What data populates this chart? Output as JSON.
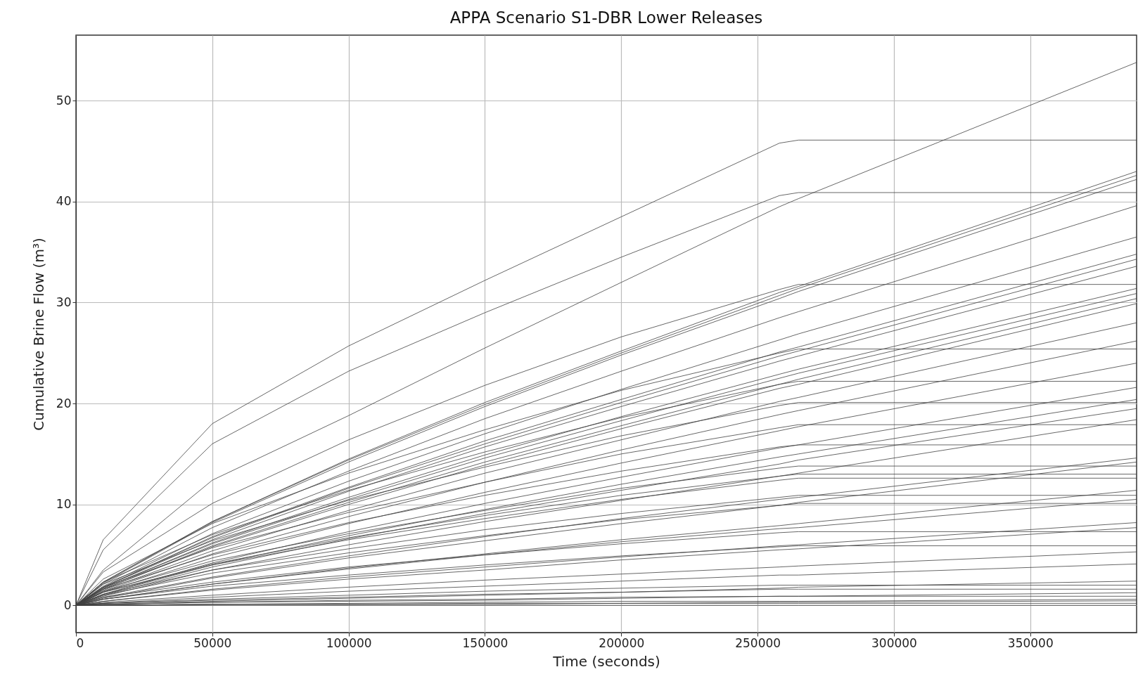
{
  "chart_data": {
    "type": "line",
    "title": "APPA Scenario S1-DBR Lower Releases",
    "xlabel": "Time (seconds)",
    "ylabel": "Cumulative Brine Flow (m³)",
    "x": [
      0,
      10000,
      50000,
      100000,
      150000,
      200000,
      258000,
      265000,
      389000
    ],
    "xlim": [
      0,
      389000
    ],
    "xticks": [
      0,
      50000,
      100000,
      150000,
      200000,
      250000,
      300000,
      350000
    ],
    "ylim": [
      -2.7,
      56.5
    ],
    "yticks": [
      0,
      10,
      20,
      30,
      40,
      50
    ],
    "grid": true,
    "line_style": "solid",
    "series": [
      {
        "color": "#404040",
        "values": [
          0,
          3.5,
          12.4,
          18.8,
          25.5,
          32.0,
          39.5,
          40.3,
          53.8
        ]
      },
      {
        "color": "#404040",
        "values": [
          0,
          6.5,
          18.0,
          25.7,
          32.2,
          38.5,
          45.8,
          46.1,
          46.1
        ]
      },
      {
        "color": "#404040",
        "values": [
          0,
          5.5,
          16.0,
          23.2,
          29.0,
          34.5,
          40.6,
          40.9,
          40.9
        ]
      },
      {
        "color": "#404040",
        "values": [
          0,
          3.3,
          10.1,
          16.4,
          21.8,
          26.6,
          31.3,
          31.8,
          31.8
        ]
      },
      {
        "color": "#404040",
        "values": [
          0,
          2.3,
          8.3,
          14.5,
          20.1,
          25.2,
          31.0,
          31.6,
          43.0
        ]
      },
      {
        "color": "#404040",
        "values": [
          0,
          2.3,
          8.3,
          14.4,
          19.9,
          25.0,
          30.7,
          31.4,
          42.6
        ]
      },
      {
        "color": "#404040",
        "values": [
          0,
          2.2,
          8.2,
          14.2,
          19.7,
          24.8,
          30.4,
          31.1,
          42.2
        ]
      },
      {
        "color": "#404040",
        "values": [
          0,
          2.1,
          7.7,
          13.3,
          18.5,
          23.2,
          28.5,
          29.1,
          39.6
        ]
      },
      {
        "color": "#404040",
        "values": [
          0,
          1.9,
          7.1,
          12.3,
          17.0,
          21.4,
          26.3,
          26.9,
          36.5
        ]
      },
      {
        "color": "#404040",
        "values": [
          0,
          1.8,
          6.8,
          11.7,
          16.3,
          20.4,
          25.1,
          25.6,
          34.8
        ]
      },
      {
        "color": "#404040",
        "values": [
          0,
          1.8,
          6.7,
          11.6,
          16.0,
          20.1,
          24.7,
          25.2,
          34.3
        ]
      },
      {
        "color": "#404040",
        "values": [
          0,
          1.8,
          6.5,
          11.3,
          15.7,
          19.7,
          24.2,
          24.7,
          33.6
        ]
      },
      {
        "color": "#404040",
        "values": [
          0,
          1.7,
          6.2,
          10.7,
          14.9,
          18.7,
          22.9,
          23.4,
          31.4
        ]
      },
      {
        "color": "#404040",
        "values": [
          0,
          1.7,
          6.1,
          10.5,
          14.6,
          18.3,
          22.5,
          23.0,
          30.9
        ]
      },
      {
        "color": "#404040",
        "values": [
          0,
          1.6,
          5.9,
          10.2,
          14.2,
          17.8,
          21.9,
          22.4,
          30.4
        ]
      },
      {
        "color": "#404040",
        "values": [
          0,
          1.6,
          5.8,
          10.0,
          13.9,
          17.5,
          21.5,
          21.9,
          29.9
        ]
      },
      {
        "color": "#404040",
        "values": [
          0,
          1.5,
          5.4,
          9.4,
          13.1,
          16.4,
          20.2,
          20.6,
          28.0
        ]
      },
      {
        "color": "#404040",
        "values": [
          0,
          1.4,
          5.1,
          8.8,
          12.2,
          15.4,
          18.9,
          19.3,
          26.2
        ]
      },
      {
        "color": "#404040",
        "values": [
          0,
          1.3,
          4.7,
          8.1,
          11.2,
          14.1,
          17.3,
          17.7,
          24.0
        ]
      },
      {
        "color": "#404040",
        "values": [
          0,
          1.1,
          4.2,
          7.3,
          10.1,
          12.7,
          15.6,
          15.9,
          21.6
        ]
      },
      {
        "color": "#404040",
        "values": [
          0,
          1.1,
          4.0,
          6.9,
          9.5,
          12.0,
          14.7,
          15.0,
          20.4
        ]
      },
      {
        "color": "#404040",
        "values": [
          0,
          1.0,
          3.8,
          6.6,
          9.1,
          11.4,
          14.0,
          14.4,
          19.5
        ]
      },
      {
        "color": "#404040",
        "values": [
          0,
          0.9,
          3.5,
          6.0,
          8.3,
          10.4,
          12.8,
          13.1,
          18.4
        ]
      },
      {
        "color": "#404040",
        "values": [
          0,
          0.8,
          2.8,
          4.9,
          6.8,
          8.6,
          10.5,
          10.7,
          14.6
        ]
      },
      {
        "color": "#404040",
        "values": [
          0,
          0.7,
          2.7,
          4.7,
          6.4,
          8.1,
          9.9,
          10.2,
          14.2
        ]
      },
      {
        "color": "#404040",
        "values": [
          0,
          0.6,
          2.1,
          3.7,
          5.1,
          6.5,
          7.9,
          8.1,
          11.4
        ]
      },
      {
        "color": "#404040",
        "values": [
          0,
          0.6,
          2.1,
          3.6,
          5.0,
          6.3,
          7.6,
          7.7,
          10.5
        ]
      },
      {
        "color": "#404040",
        "values": [
          0,
          0.4,
          1.6,
          2.8,
          3.8,
          4.8,
          5.9,
          6.0,
          8.2
        ]
      },
      {
        "color": "#404040",
        "values": [
          0,
          0.4,
          1.5,
          2.6,
          3.5,
          4.5,
          5.5,
          5.6,
          7.7
        ]
      },
      {
        "color": "#404040",
        "values": [
          0,
          0.3,
          1.0,
          1.8,
          2.5,
          3.1,
          3.8,
          3.9,
          5.3
        ]
      },
      {
        "color": "#404040",
        "values": [
          0,
          0.2,
          0.8,
          1.4,
          1.9,
          2.4,
          3.0,
          3.0,
          4.1
        ]
      },
      {
        "color": "#404040",
        "values": [
          0,
          0.1,
          0.4,
          0.7,
          1.0,
          1.3,
          1.7,
          1.8,
          2.4
        ]
      },
      {
        "color": "#404040",
        "values": [
          0,
          0.1,
          0.3,
          0.4,
          0.5,
          0.7,
          0.9,
          0.9,
          1.25
        ]
      },
      {
        "color": "#404040",
        "values": [
          0,
          0,
          0.1,
          0.2,
          0.3,
          0.4,
          0.4,
          0.4,
          0.6
        ]
      },
      {
        "color": "#404040",
        "values": [
          0,
          0,
          0.1,
          0.1,
          0.2,
          0.2,
          0.3,
          0.3,
          0.45
        ]
      },
      {
        "color": "#404040",
        "values": [
          0,
          0,
          0,
          0,
          0,
          0,
          0,
          0,
          0
        ]
      },
      {
        "color": "#404040",
        "values": [
          0,
          2.6,
          8.1,
          13.1,
          17.4,
          21.3,
          25.0,
          25.4,
          25.4
        ]
      },
      {
        "color": "#404040",
        "values": [
          0,
          2.3,
          7.0,
          11.4,
          15.2,
          18.6,
          21.9,
          22.2,
          22.2
        ]
      },
      {
        "color": "#404040",
        "values": [
          0,
          2.1,
          6.4,
          10.4,
          13.7,
          16.8,
          19.8,
          20.1,
          20.1
        ]
      },
      {
        "color": "#404040",
        "values": [
          0,
          1.8,
          5.7,
          9.2,
          12.2,
          15.0,
          17.6,
          17.9,
          17.9
        ]
      },
      {
        "color": "#404040",
        "values": [
          0,
          1.6,
          5.0,
          8.2,
          10.9,
          13.3,
          15.7,
          15.9,
          15.9
        ]
      },
      {
        "color": "#404040",
        "values": [
          0,
          1.4,
          4.4,
          7.1,
          9.4,
          11.6,
          13.6,
          13.8,
          13.8
        ]
      },
      {
        "color": "#404040",
        "values": [
          0,
          1.3,
          4.1,
          6.7,
          8.9,
          10.9,
          12.8,
          13.0,
          13.0
        ]
      },
      {
        "color": "#404040",
        "values": [
          0,
          1.3,
          4.0,
          6.5,
          8.6,
          10.5,
          12.4,
          12.6,
          12.6
        ]
      },
      {
        "color": "#404040",
        "values": [
          0,
          1.1,
          3.5,
          5.6,
          7.5,
          9.1,
          10.7,
          10.9,
          10.9
        ]
      },
      {
        "color": "#404040",
        "values": [
          0,
          1.0,
          3.2,
          5.2,
          6.9,
          8.5,
          9.9,
          10.1,
          10.1
        ]
      },
      {
        "color": "#404040",
        "values": [
          0,
          0.8,
          2.3,
          3.8,
          5.0,
          6.1,
          7.2,
          7.3,
          7.3
        ]
      },
      {
        "color": "#404040",
        "values": [
          0,
          0.6,
          1.9,
          3.0,
          4.0,
          4.9,
          5.8,
          5.9,
          5.9
        ]
      },
      {
        "color": "#404040",
        "values": [
          0,
          0.2,
          0.6,
          1.0,
          1.4,
          1.7,
          2.0,
          2.0,
          2.0
        ]
      },
      {
        "color": "#404040",
        "values": [
          0,
          0.2,
          0.5,
          0.8,
          1.1,
          1.3,
          1.6,
          1.6,
          1.6
        ]
      },
      {
        "color": "#404040",
        "values": [
          0,
          0.1,
          0.3,
          0.5,
          0.6,
          0.8,
          0.9,
          0.9,
          0.9
        ]
      },
      {
        "color": "#404040",
        "values": [
          0,
          0,
          0.1,
          0.1,
          0.1,
          0.2,
          0.2,
          0.2,
          0.2
        ]
      }
    ]
  }
}
